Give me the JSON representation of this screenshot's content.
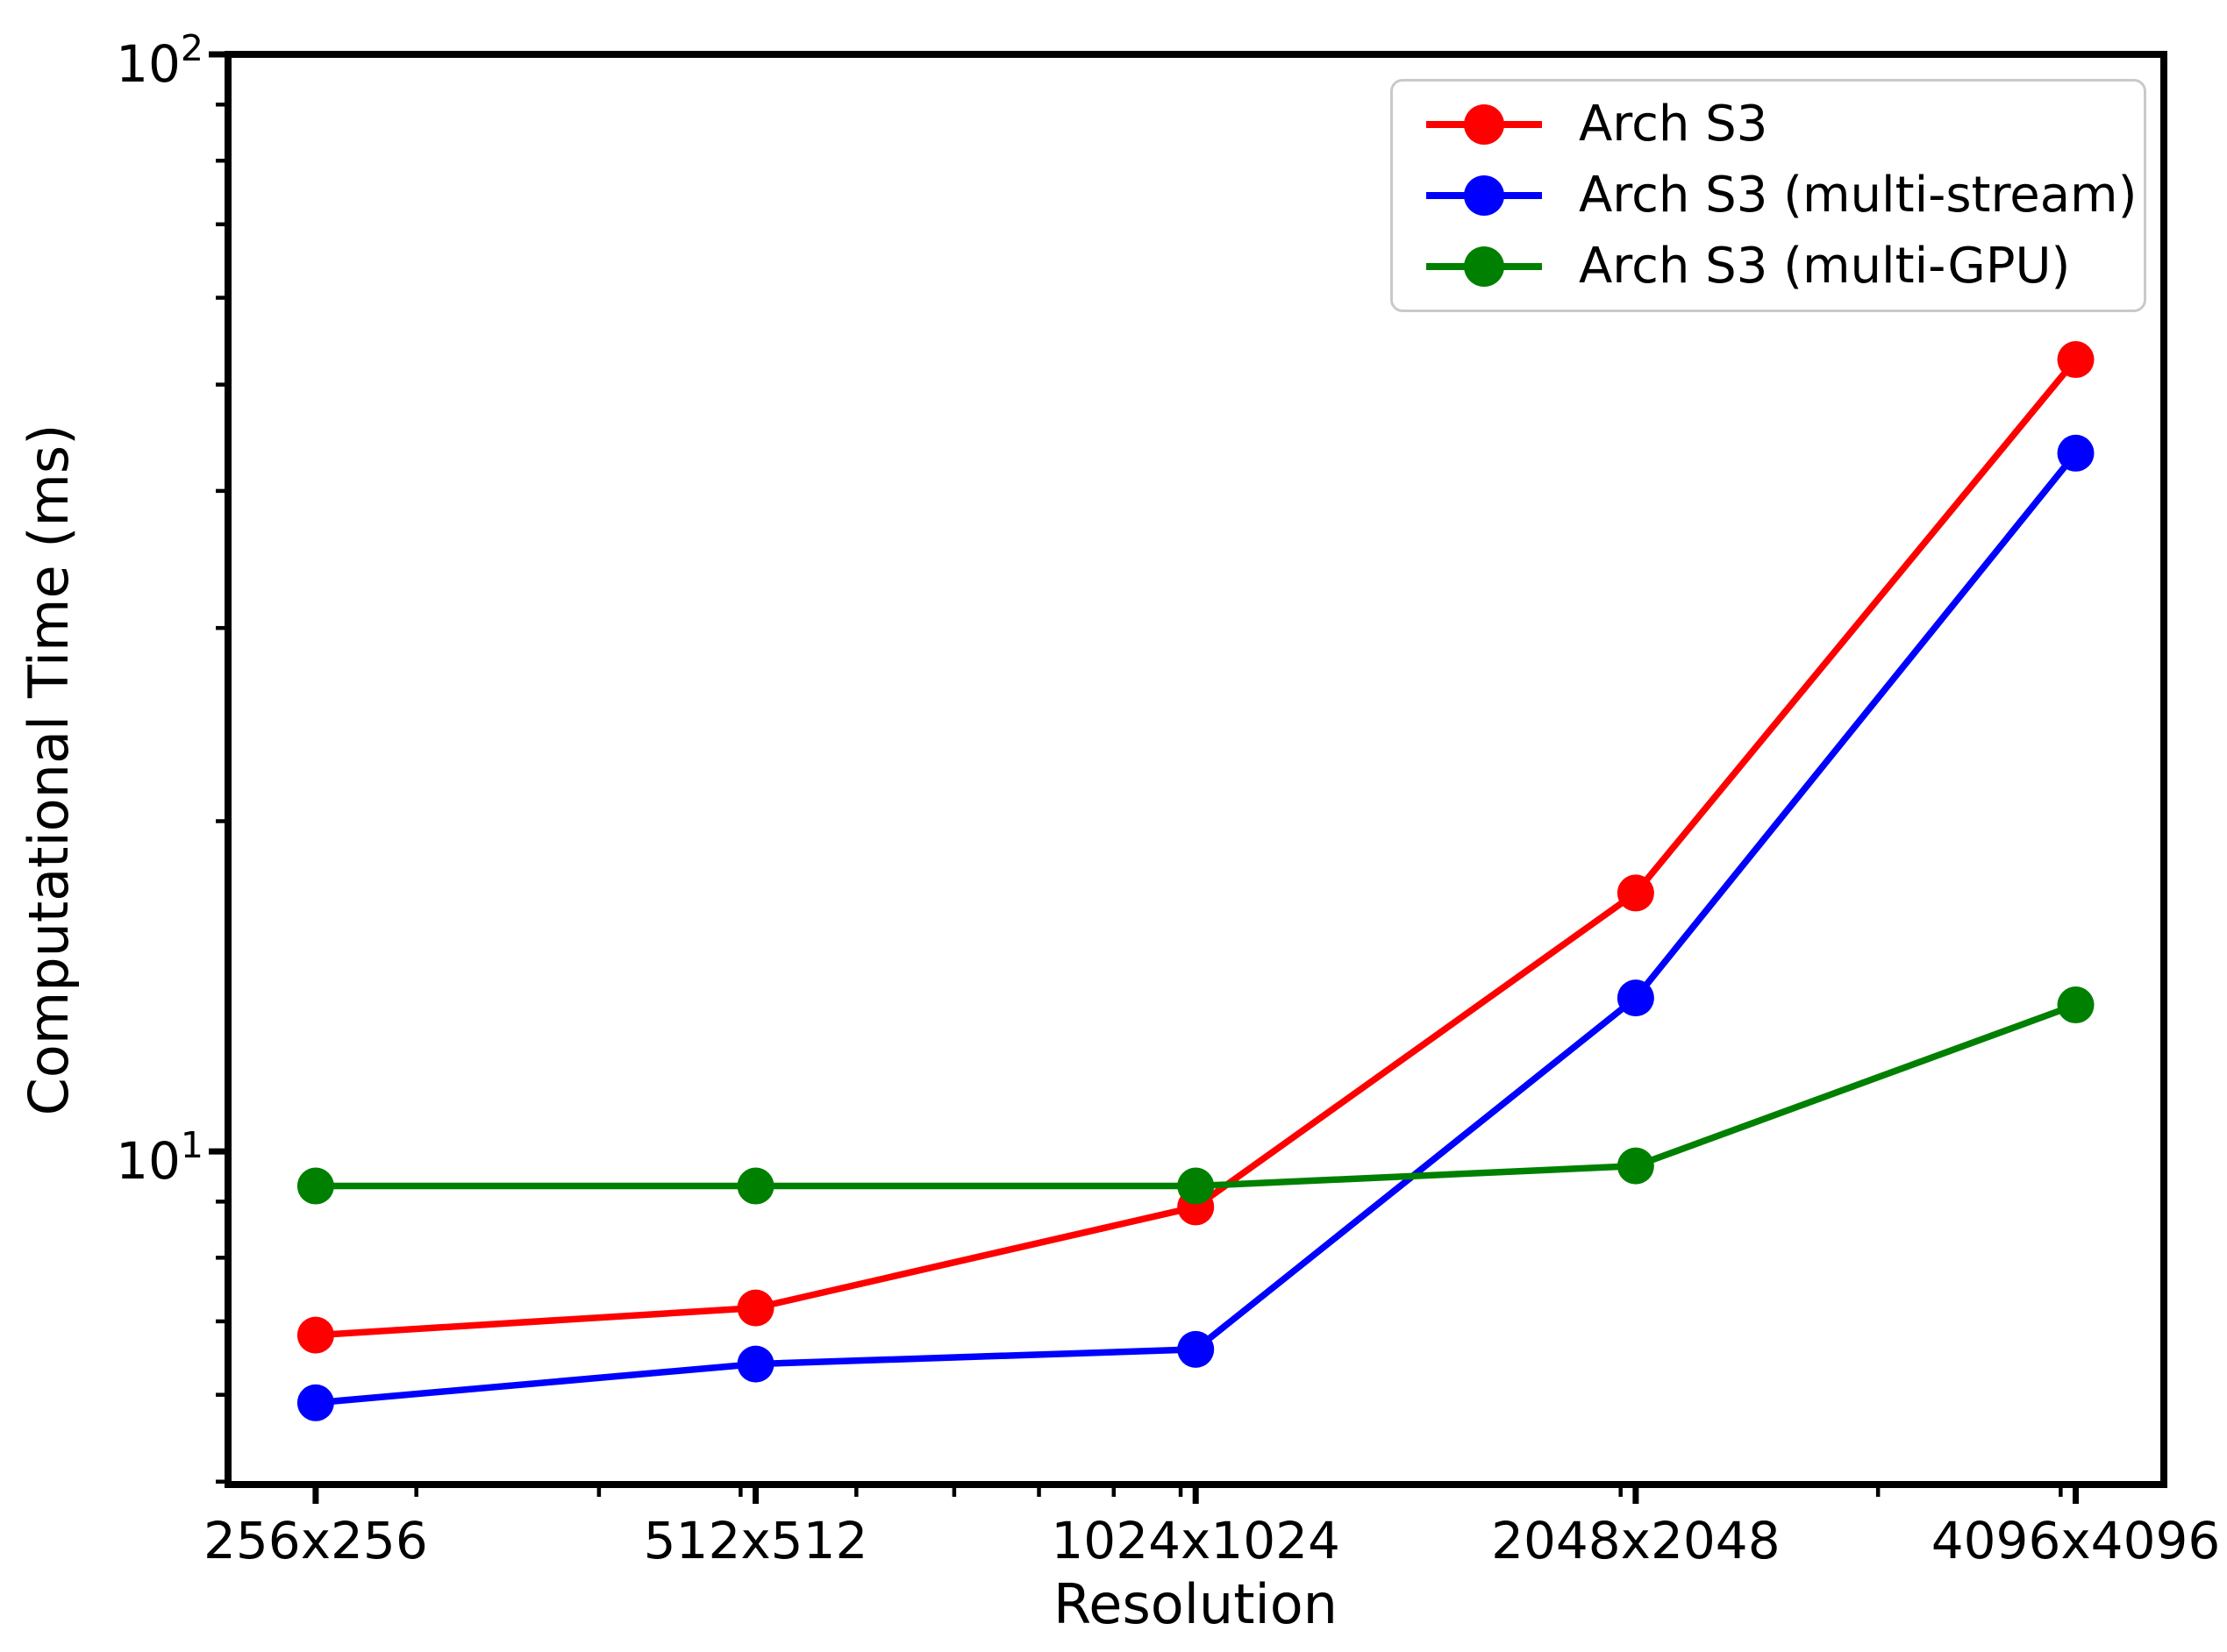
{
  "chart_data": {
    "type": "line",
    "title": "",
    "xlabel": "Resolution",
    "ylabel": "Computational Time (ms)",
    "x_scale": "log",
    "y_scale": "log",
    "grid": false,
    "legend_position": "upper right",
    "background_color": "#ffffff",
    "axis_color": "#000000",
    "x": [
      256,
      512,
      1024,
      2048,
      4096
    ],
    "x_tick_labels": [
      "256x256",
      "512x512",
      "1024x1024",
      "2048x2048",
      "4096x4096"
    ],
    "y_major_ticks": [
      {
        "value": 10,
        "base": "10",
        "exponent": "1"
      },
      {
        "value": 100,
        "base": "10",
        "exponent": "2"
      }
    ],
    "y_minor_tick_values": [
      5,
      6,
      7,
      8,
      9,
      20,
      30,
      40,
      50,
      60,
      70,
      80,
      90
    ],
    "x_minor_tick_values": [
      300,
      400,
      500,
      600,
      700,
      800,
      900,
      1000,
      2000,
      3000,
      4000
    ],
    "xlim": [
      223,
      4706
    ],
    "ylim": [
      4.97,
      100
    ],
    "series": [
      {
        "name": "Arch S3",
        "color": "#ff0000",
        "values": [
          6.8,
          7.2,
          8.9,
          17.2,
          52.7
        ]
      },
      {
        "name": "Arch S3 (multi-stream)",
        "color": "#0000ff",
        "values": [
          5.9,
          6.4,
          6.6,
          13.8,
          43.3
        ]
      },
      {
        "name": "Arch S3 (multi-GPU)",
        "color": "#008000",
        "values": [
          9.3,
          9.3,
          9.3,
          9.7,
          13.6
        ]
      }
    ]
  }
}
